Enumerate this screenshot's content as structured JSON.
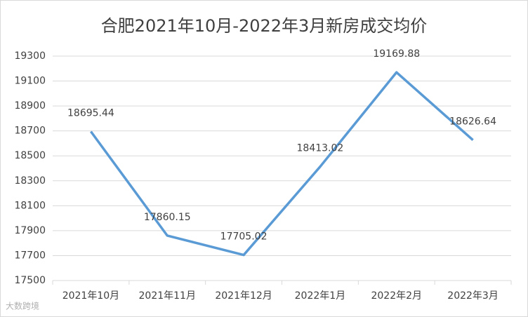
{
  "chart_data": {
    "type": "line",
    "title": "合肥2021年10月-2022年3月新房成交均价",
    "categories": [
      "2021年10月",
      "2021年11月",
      "2021年12月",
      "2022年1月",
      "2022年2月",
      "2022年3月"
    ],
    "series": [
      {
        "name": "新房成交均价",
        "color": "#5b9bd5",
        "values": [
          18695.44,
          17860.15,
          17705.02,
          18413.02,
          19169.88,
          18626.64
        ]
      }
    ],
    "ylim": [
      17500,
      19300
    ],
    "yticks": [
      17500,
      17700,
      17900,
      18100,
      18300,
      18500,
      18700,
      18900,
      19100,
      19300
    ],
    "grid": true,
    "watermark": "大数跨境"
  }
}
